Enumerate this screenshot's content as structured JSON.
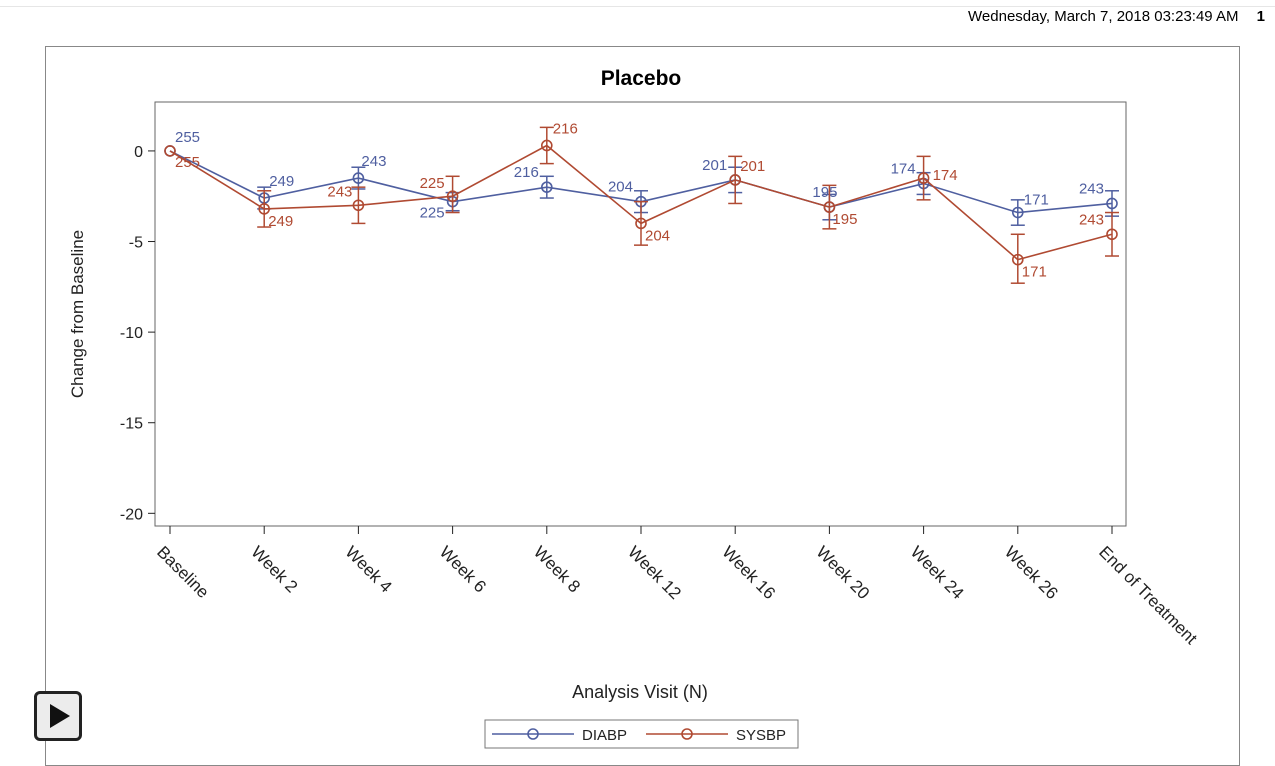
{
  "header": {
    "timestamp": "Wednesday, March  7, 2018 03:23:49 AM",
    "page_number": "1"
  },
  "player": {
    "icon": "play-icon"
  },
  "colors": {
    "diabp": "#4f5fa0",
    "sysbp": "#b04a32",
    "axis": "#222222"
  },
  "chart_data": {
    "type": "line",
    "title": "Placebo",
    "xlabel": "Analysis Visit (N)",
    "ylabel": "Change from Baseline",
    "ylim": [
      -20.7,
      2.7
    ],
    "yticks": [
      0,
      -5,
      -10,
      -15,
      -20
    ],
    "grid": false,
    "legend_position": "bottom-center",
    "categories": [
      "Baseline",
      "Week 2",
      "Week 4",
      "Week 6",
      "Week 8",
      "Week 12",
      "Week 16",
      "Week 20",
      "Week 24",
      "Week 26",
      "End of Treatment"
    ],
    "series": [
      {
        "name": "DIABP",
        "values": [
          0,
          -2.6,
          -1.5,
          -2.8,
          -2.0,
          -2.8,
          -1.6,
          -3.1,
          -1.8,
          -3.4,
          -2.9
        ],
        "lower": [
          0,
          -3.2,
          -2.1,
          -3.3,
          -2.6,
          -3.4,
          -2.3,
          -3.8,
          -2.4,
          -4.1,
          -3.6
        ],
        "upper": [
          0,
          -2.0,
          -0.9,
          -2.3,
          -1.4,
          -2.2,
          -0.9,
          -2.4,
          -1.2,
          -2.7,
          -2.2
        ],
        "n": [
          "255",
          "249",
          "243",
          "225",
          "216",
          "204",
          "201",
          "195",
          "174",
          "171",
          "243"
        ]
      },
      {
        "name": "SYSBP",
        "values": [
          0,
          -3.2,
          -3.0,
          -2.5,
          0.3,
          -4.0,
          -1.6,
          -3.1,
          -1.5,
          -6.0,
          -4.6
        ],
        "lower": [
          0,
          -4.2,
          -4.0,
          -3.4,
          -0.7,
          -5.2,
          -2.9,
          -4.3,
          -2.7,
          -7.3,
          -5.8
        ],
        "upper": [
          0,
          -2.2,
          -2.0,
          -1.4,
          1.3,
          -2.8,
          -0.3,
          -1.9,
          -0.3,
          -4.6,
          -3.4
        ],
        "n": [
          "255",
          "249",
          "243",
          "225",
          "216",
          "204",
          "201",
          "195",
          "174",
          "171",
          "243"
        ]
      }
    ]
  }
}
